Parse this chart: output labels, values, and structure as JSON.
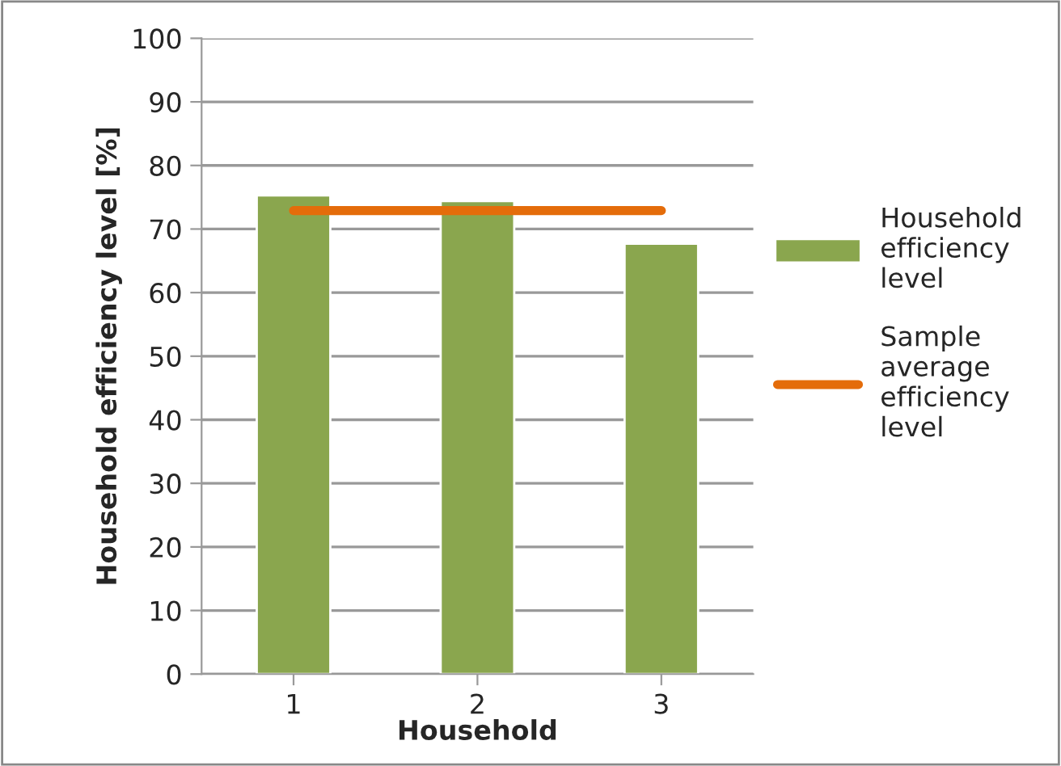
{
  "chart_data": {
    "type": "bar",
    "xlabel": "Household",
    "ylabel": "Household efficiency level [%]",
    "categories": [
      "1",
      "2",
      "3"
    ],
    "series": [
      {
        "name": "Household efficiency level",
        "color": "#8aa64e",
        "values": [
          75.3,
          74.4,
          67.7
        ]
      },
      {
        "name": "Sample average efficiency level",
        "type": "line",
        "color": "#e46c0a",
        "values": [
          72.9,
          72.9,
          72.9
        ]
      }
    ],
    "ylim": [
      0,
      100
    ],
    "yticks": [
      0,
      10,
      20,
      30,
      40,
      50,
      60,
      70,
      80,
      90,
      100
    ],
    "grid": "y",
    "legend": "right"
  }
}
